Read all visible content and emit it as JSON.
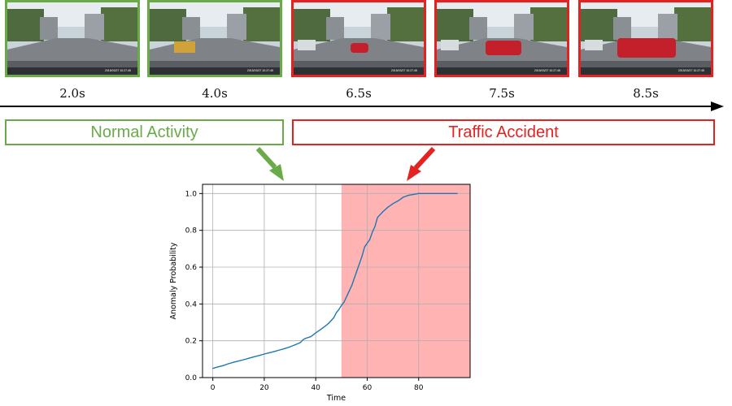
{
  "frames": [
    {
      "time_label": "2.0s",
      "border_color": "#6aaa48",
      "phase": "normal",
      "stamp": "2015/03/27 10:27:45"
    },
    {
      "time_label": "4.0s",
      "border_color": "#6aaa48",
      "phase": "normal",
      "stamp": "2015/03/27 10:27:45"
    },
    {
      "time_label": "6.5s",
      "border_color": "#e52222",
      "phase": "accident",
      "stamp": "2015/03/27 10:27:45"
    },
    {
      "time_label": "7.5s",
      "border_color": "#e52222",
      "phase": "accident",
      "stamp": "2015/03/27 10:27:45"
    },
    {
      "time_label": "8.5s",
      "border_color": "#e52222",
      "phase": "accident",
      "stamp": "2015/03/27 10:27:45"
    }
  ],
  "phases": {
    "normal": {
      "label": "Normal Activity",
      "color": "#6aaa48"
    },
    "accident": {
      "label": "Traffic Accident",
      "color": "#e52222"
    }
  },
  "colors": {
    "line": "#1f77b4",
    "shade": "#ffb3b3",
    "grid": "#b0b0b0",
    "timeline": "#000000"
  },
  "chart_data": {
    "type": "line",
    "title": "",
    "xlabel": "Time",
    "ylabel": "Anomaly Probability",
    "xlim": [
      -4,
      100
    ],
    "ylim": [
      0,
      1.05
    ],
    "xticks": [
      0,
      20,
      40,
      60,
      80
    ],
    "yticks": [
      0.0,
      0.2,
      0.4,
      0.6,
      0.8,
      1.0
    ],
    "ytick_labels": [
      "0.0",
      "0.2",
      "0.4",
      "0.6",
      "0.8",
      "1.0"
    ],
    "grid": true,
    "highlight_span": {
      "x_start": 50,
      "x_end": 100,
      "label": "accident"
    },
    "series": [
      {
        "values": [
          [
            0,
            0.05
          ],
          [
            2,
            0.058
          ],
          [
            4,
            0.065
          ],
          [
            6,
            0.075
          ],
          [
            8,
            0.083
          ],
          [
            10,
            0.09
          ],
          [
            12,
            0.097
          ],
          [
            14,
            0.105
          ],
          [
            16,
            0.113
          ],
          [
            18,
            0.12
          ],
          [
            20,
            0.128
          ],
          [
            22,
            0.135
          ],
          [
            24,
            0.142
          ],
          [
            26,
            0.15
          ],
          [
            28,
            0.158
          ],
          [
            30,
            0.167
          ],
          [
            32,
            0.178
          ],
          [
            34,
            0.19
          ],
          [
            35,
            0.205
          ],
          [
            36,
            0.213
          ],
          [
            38,
            0.222
          ],
          [
            39,
            0.232
          ],
          [
            40,
            0.243
          ],
          [
            42,
            0.262
          ],
          [
            44,
            0.283
          ],
          [
            45,
            0.295
          ],
          [
            46,
            0.31
          ],
          [
            47,
            0.325
          ],
          [
            48,
            0.352
          ],
          [
            49,
            0.37
          ],
          [
            50,
            0.392
          ],
          [
            51,
            0.41
          ],
          [
            52,
            0.44
          ],
          [
            53,
            0.47
          ],
          [
            54,
            0.5
          ],
          [
            55,
            0.54
          ],
          [
            56,
            0.58
          ],
          [
            57,
            0.62
          ],
          [
            58,
            0.66
          ],
          [
            59,
            0.71
          ],
          [
            60,
            0.73
          ],
          [
            61,
            0.75
          ],
          [
            62,
            0.79
          ],
          [
            63,
            0.82
          ],
          [
            64,
            0.87
          ],
          [
            66,
            0.9
          ],
          [
            68,
            0.925
          ],
          [
            70,
            0.945
          ],
          [
            72,
            0.96
          ],
          [
            74,
            0.98
          ],
          [
            76,
            0.99
          ],
          [
            78,
            0.995
          ],
          [
            80,
            1.0
          ],
          [
            85,
            1.0
          ],
          [
            90,
            1.0
          ],
          [
            95,
            1.0
          ]
        ]
      }
    ]
  }
}
